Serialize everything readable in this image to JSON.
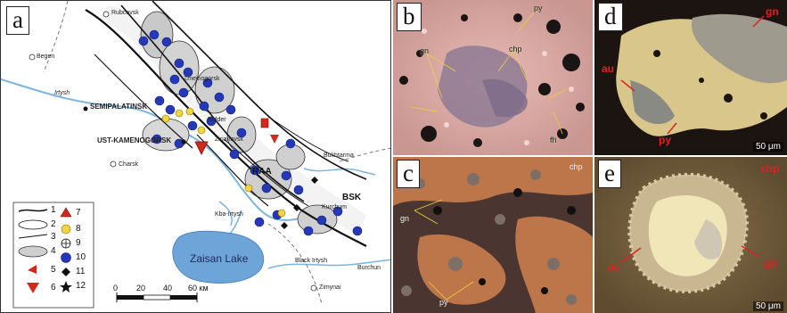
{
  "panels": {
    "a": {
      "label": "a"
    },
    "b": {
      "label": "b",
      "minerals": [
        "gn",
        "py",
        "chp",
        "fh"
      ]
    },
    "c": {
      "label": "c",
      "minerals": [
        "gn",
        "chp",
        "py"
      ]
    },
    "d": {
      "label": "d",
      "minerals": [
        "au",
        "gn",
        "py"
      ],
      "scale": "50 μm"
    },
    "e": {
      "label": "e",
      "minerals": [
        "chp",
        "au",
        "gn"
      ],
      "scale": "50 μm"
    }
  },
  "map": {
    "places": {
      "rubcovsk": "Rubcovsk",
      "begen": "Begen",
      "irtysh": "Irtysh",
      "semipalatinsk": "SEMIPALATINSK",
      "ust_kamenogorsk": "UST-KAMENOGORSK",
      "charsk": "Charsk",
      "zmeinogorsk": "Zmeinogorsk",
      "ridder": "Ridder",
      "zirianovsk": "Zirianovsk",
      "bukhtarma": "Bukhtarma",
      "kurchum": "Kurchum",
      "zaisan_lake": "Zaisan Lake",
      "black_irtysh": "Black Irtysh",
      "burchun": "Burchun",
      "zimynai": "Zimynai",
      "kba": "Kba-Irtysh"
    },
    "zones": {
      "raa": "RAA",
      "bsk": "BSK"
    },
    "scalebar": {
      "ticks": [
        "0",
        "20",
        "40",
        "60 км"
      ]
    },
    "legend": [
      "1",
      "2",
      "3",
      "4",
      "5",
      "6",
      "7",
      "8",
      "9",
      "10",
      "11",
      "12"
    ]
  }
}
